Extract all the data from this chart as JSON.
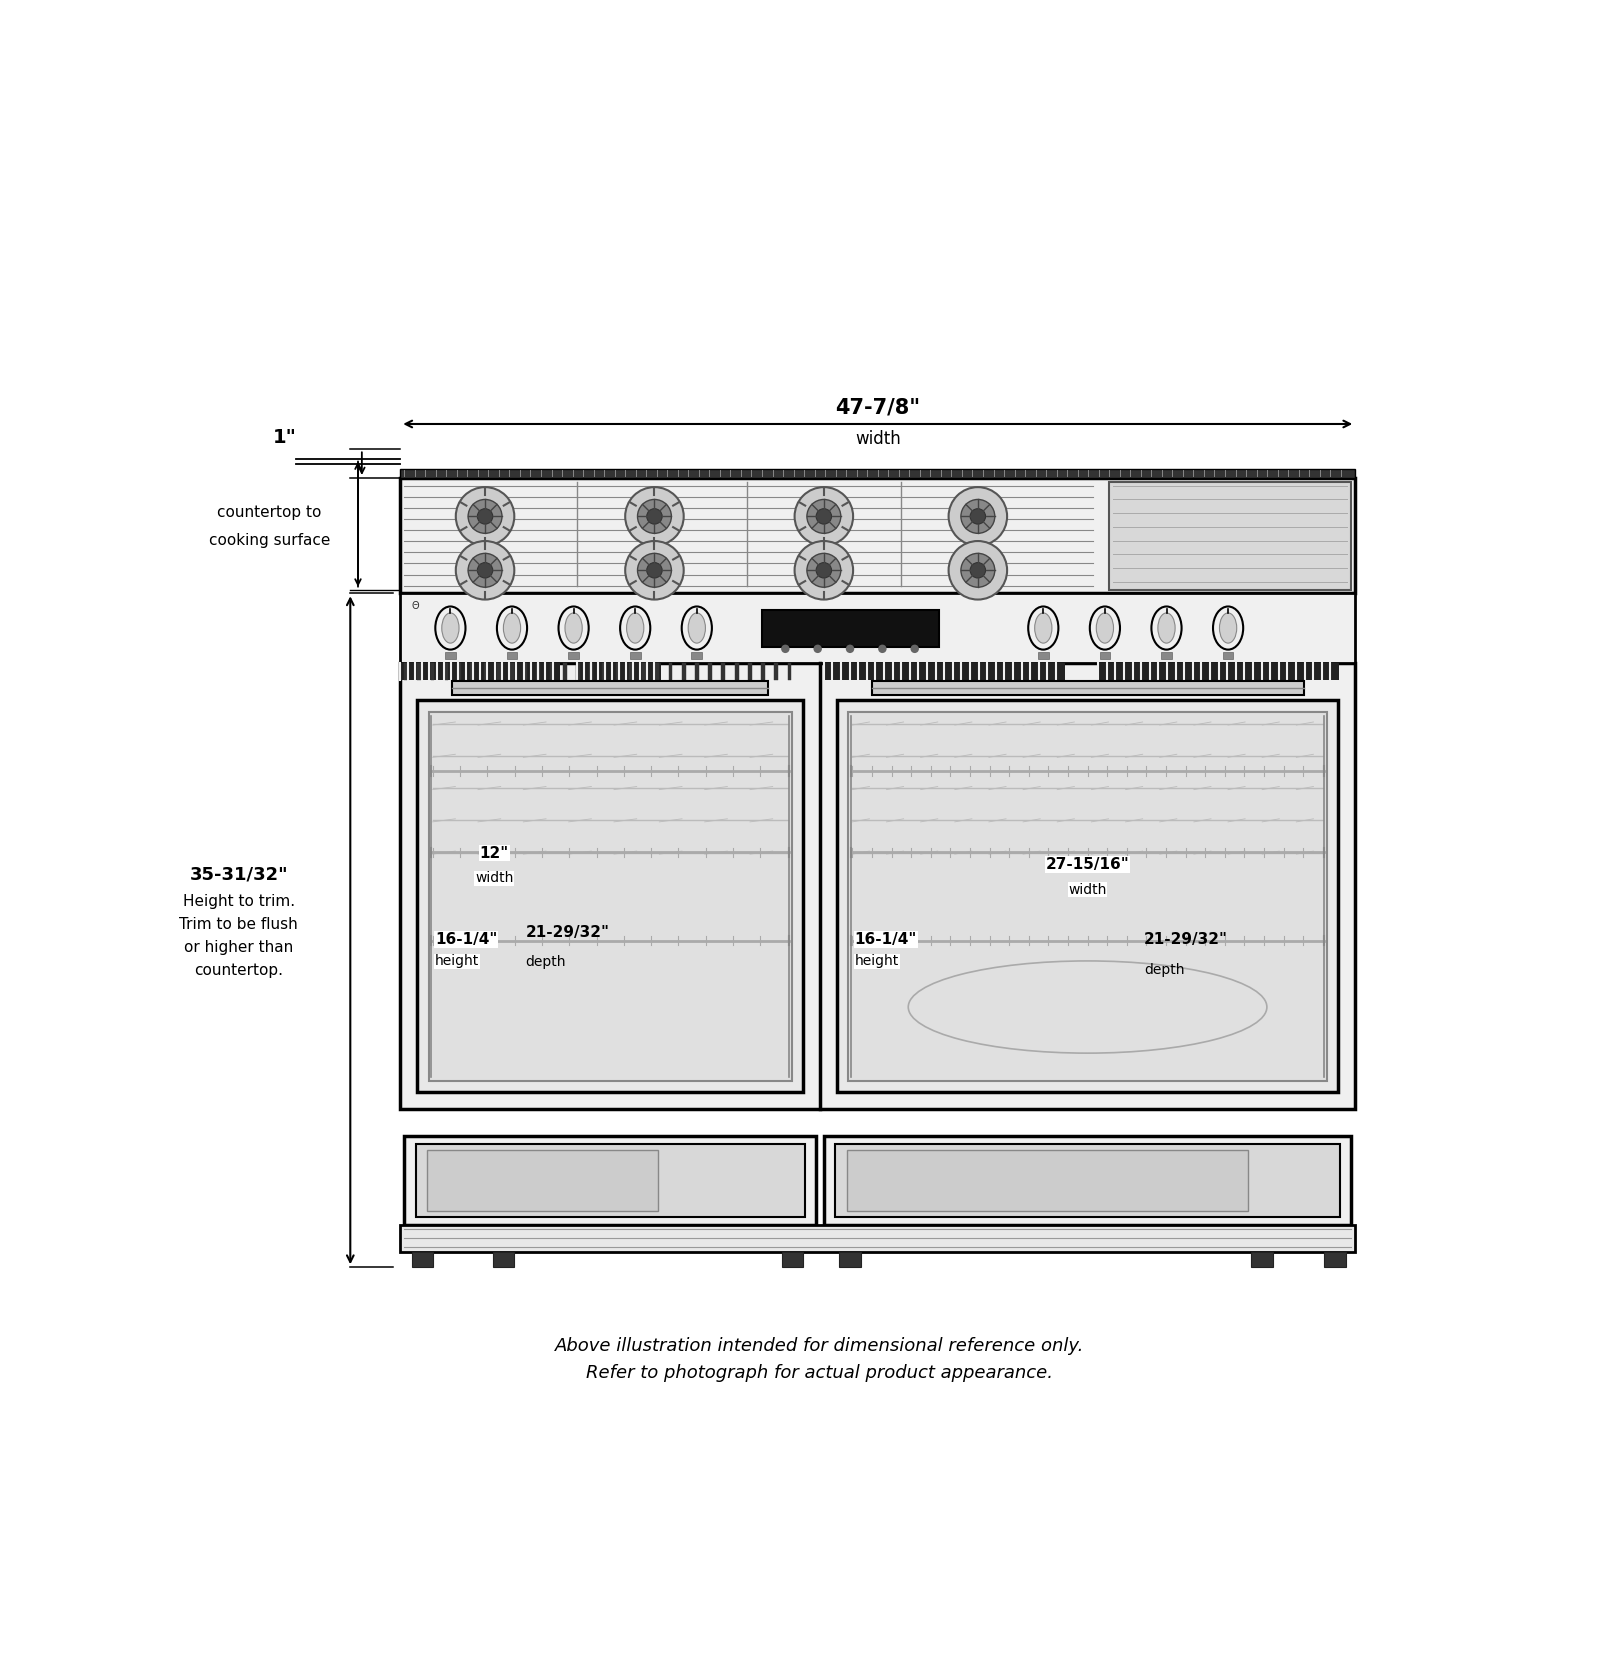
{
  "bg_color": "#ffffff",
  "line_color": "#000000",
  "gray_light": "#cccccc",
  "gray_med": "#999999",
  "gray_dark": "#555555",
  "gray_fill": "#e8e8e8",
  "oven_fill": "#d5d5d5",
  "fig_width": 16.0,
  "fig_height": 16.66,
  "footnote_line1": "Above illustration intended for dimensional reference only.",
  "footnote_line2": "Refer to photograph for actual product appearance.",
  "dim_1in_label": "1\"",
  "dim_width_label": "47-7/8\"",
  "dim_width_sub": "width",
  "dim_height_label": "35-31/32\"",
  "dim_height_desc1": "Height to trim.",
  "dim_height_desc2": "Trim to be flush",
  "dim_height_desc3": "or higher than",
  "dim_height_desc4": "countertop.",
  "dim_ctop_label": "countertop to",
  "dim_ctop_sub": "cooking surface",
  "left_oven_width_label": "12\"",
  "left_oven_width_sub": "width",
  "left_oven_height_label": "16-1/4\"",
  "left_oven_height_sub": "height",
  "left_oven_depth_label": "21-29/32\"",
  "left_oven_depth_sub": "depth",
  "right_oven_width_label": "27-15/16\"",
  "right_oven_width_sub": "width",
  "right_oven_height_label": "16-1/4\"",
  "right_oven_height_sub": "height",
  "right_oven_depth_label": "21-29/32\"",
  "right_oven_depth_sub": "depth"
}
